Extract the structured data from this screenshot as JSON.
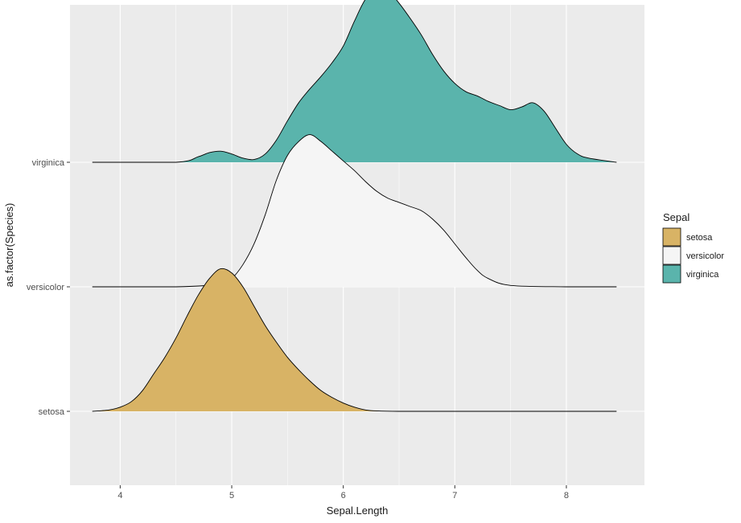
{
  "chart_data": {
    "type": "area",
    "subtype": "ridgeline-density",
    "xlabel": "Sepal.Length",
    "ylabel": "as.factor(Species)",
    "xlim": [
      3.55,
      8.7
    ],
    "x_ticks": [
      4,
      5,
      6,
      7,
      8
    ],
    "categories": [
      "setosa",
      "versicolor",
      "virginica"
    ],
    "grid": true,
    "legend": {
      "title": "Sepal",
      "position": "right"
    },
    "colors": {
      "setosa": "#D8B365",
      "versicolor": "#F5F5F5",
      "virginica": "#5AB4AC",
      "panel": "#EBEBEB",
      "grid": "#FFFFFF"
    },
    "series": [
      {
        "name": "setosa",
        "x": [
          3.75,
          3.9,
          4.0,
          4.1,
          4.2,
          4.3,
          4.4,
          4.5,
          4.6,
          4.7,
          4.8,
          4.9,
          5.0,
          5.1,
          5.2,
          5.3,
          5.4,
          5.5,
          5.6,
          5.7,
          5.8,
          5.9,
          6.0,
          6.1,
          6.2,
          6.3,
          6.5,
          7.0,
          8.0,
          8.45
        ],
        "density": [
          0.0,
          0.01,
          0.03,
          0.07,
          0.15,
          0.27,
          0.39,
          0.53,
          0.69,
          0.84,
          0.96,
          1.03,
          1.0,
          0.9,
          0.76,
          0.62,
          0.5,
          0.39,
          0.3,
          0.22,
          0.15,
          0.1,
          0.06,
          0.03,
          0.01,
          0.003,
          0.0,
          0.0,
          0.0,
          0.0
        ]
      },
      {
        "name": "versicolor",
        "x": [
          3.75,
          4.5,
          4.9,
          5.0,
          5.1,
          5.2,
          5.3,
          5.4,
          5.5,
          5.6,
          5.7,
          5.8,
          5.9,
          6.0,
          6.1,
          6.2,
          6.3,
          6.4,
          6.5,
          6.6,
          6.7,
          6.8,
          6.9,
          7.0,
          7.1,
          7.2,
          7.3,
          7.5,
          8.0,
          8.45
        ],
        "density": [
          0.0,
          0.0,
          0.02,
          0.06,
          0.16,
          0.31,
          0.52,
          0.77,
          0.95,
          1.05,
          1.1,
          1.05,
          0.98,
          0.91,
          0.84,
          0.76,
          0.69,
          0.64,
          0.61,
          0.58,
          0.55,
          0.49,
          0.41,
          0.31,
          0.21,
          0.12,
          0.06,
          0.01,
          0.0,
          0.0
        ]
      },
      {
        "name": "virginica",
        "x": [
          3.75,
          4.5,
          4.7,
          4.8,
          4.9,
          5.0,
          5.1,
          5.2,
          5.3,
          5.4,
          5.5,
          5.6,
          5.7,
          5.8,
          5.9,
          6.0,
          6.1,
          6.2,
          6.3,
          6.4,
          6.5,
          6.6,
          6.7,
          6.8,
          6.9,
          7.0,
          7.1,
          7.2,
          7.3,
          7.4,
          7.5,
          7.6,
          7.7,
          7.8,
          7.9,
          8.0,
          8.1,
          8.2,
          8.45
        ],
        "density": [
          0.0,
          0.0,
          0.04,
          0.07,
          0.08,
          0.06,
          0.03,
          0.02,
          0.06,
          0.16,
          0.3,
          0.43,
          0.53,
          0.62,
          0.72,
          0.84,
          1.02,
          1.18,
          1.25,
          1.24,
          1.15,
          1.04,
          0.92,
          0.78,
          0.66,
          0.57,
          0.51,
          0.48,
          0.44,
          0.41,
          0.38,
          0.4,
          0.43,
          0.37,
          0.25,
          0.13,
          0.06,
          0.03,
          0.0
        ]
      }
    ]
  }
}
